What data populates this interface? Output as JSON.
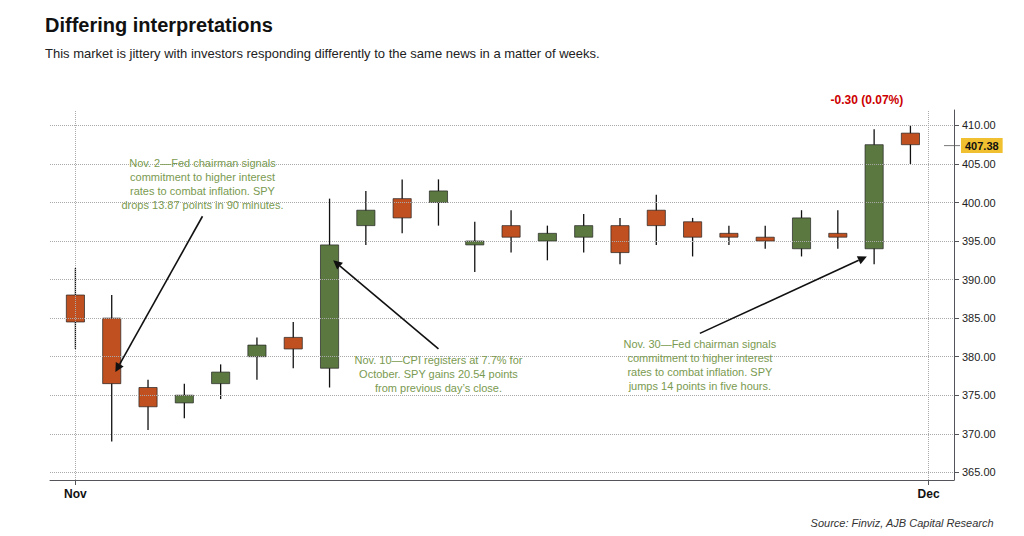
{
  "chart_data": {
    "type": "candlestick",
    "title": "Differing interpretations",
    "subtitle": "This market is jittery with investors responding differently to the same news in a matter of weeks.",
    "source": "Source: Finviz, AJB Capital Research",
    "x": [
      1,
      2,
      3,
      4,
      5,
      6,
      7,
      8,
      9,
      10,
      11,
      12,
      13,
      14,
      15,
      16,
      17,
      18,
      19,
      20,
      21,
      22,
      23,
      24
    ],
    "open": [
      388.0,
      385.0,
      376.0,
      375.0,
      376.5,
      380.0,
      382.5,
      378.5,
      397.0,
      400.5,
      400.0,
      394.5,
      397.0,
      395.0,
      395.5,
      397.0,
      399.0,
      397.5,
      396.0,
      395.5,
      394.0,
      396.0,
      394.0,
      409.0
    ],
    "high": [
      391.5,
      388.0,
      377.0,
      376.5,
      379.0,
      382.5,
      384.5,
      400.5,
      401.5,
      403.0,
      403.0,
      397.5,
      399.0,
      397.0,
      398.5,
      398.0,
      401.0,
      398.0,
      397.0,
      397.0,
      399.0,
      399.0,
      409.5,
      410.0
    ],
    "low": [
      381.0,
      369.0,
      370.5,
      372.0,
      374.5,
      377.0,
      378.5,
      376.0,
      394.5,
      396.0,
      397.0,
      391.0,
      393.5,
      392.5,
      393.5,
      392.0,
      394.5,
      393.0,
      394.5,
      394.0,
      393.0,
      394.0,
      392.0,
      405.0
    ],
    "close": [
      384.5,
      376.5,
      373.5,
      374.0,
      378.0,
      381.5,
      381.0,
      394.5,
      399.0,
      398.0,
      401.5,
      395.0,
      395.5,
      396.0,
      397.0,
      393.5,
      397.0,
      395.5,
      395.5,
      395.0,
      398.0,
      395.5,
      407.5,
      407.5
    ],
    "colors": [
      "#c05020",
      "#c05020",
      "#c05020",
      "#5a7840",
      "#5a7840",
      "#5a7840",
      "#c05020",
      "#5a7840",
      "#5a7840",
      "#c05020",
      "#5a7840",
      "#5a7840",
      "#c05020",
      "#5a7840",
      "#5a7840",
      "#c05020",
      "#c05020",
      "#c05020",
      "#c05020",
      "#c05020",
      "#5a7840",
      "#c05020",
      "#5a7840",
      "#c05020"
    ],
    "xlim": [
      0.3,
      25.2
    ],
    "xticks": [
      {
        "value": 1,
        "label": "Nov"
      },
      {
        "value": 24.5,
        "label": "Dec"
      }
    ],
    "ylim": [
      364,
      412
    ],
    "yticks": [
      {
        "value": 365,
        "label": "365.00"
      },
      {
        "value": 370,
        "label": "370.00"
      },
      {
        "value": 375,
        "label": "375.00"
      },
      {
        "value": 380,
        "label": "380.00"
      },
      {
        "value": 385,
        "label": "385.00"
      },
      {
        "value": 390,
        "label": "390.00"
      },
      {
        "value": 395,
        "label": "395.00"
      },
      {
        "value": 400,
        "label": "400.00"
      },
      {
        "value": 405,
        "label": "405.00"
      },
      {
        "value": 410,
        "label": "410.00"
      }
    ],
    "grid": true,
    "price_label": {
      "value": 407.38,
      "label": "407.38",
      "color": "#f0c030"
    },
    "change_label": {
      "text": "-0.30 (0.07%)",
      "x": 22.8,
      "color": "#cc0000"
    },
    "annotations": [
      {
        "text": "Nov. 2—Fed chairman signals\ncommitment to higher interest\nrates to combat inflation. SPY\ndrops 13.87 points in 90 minutes.",
        "x": 2.1,
        "y": 378.0,
        "text_x": 4.5,
        "text_y": 406.0,
        "color": "#7a9a50"
      },
      {
        "text": "Nov. 10—CPI registers at 7.7% for\nOctober. SPY gains 20.54 points\nfrom previous day’s close.",
        "x": 8.1,
        "y": 392.5,
        "text_x": 11.0,
        "text_y": 380.5,
        "color": "#7a9a50"
      },
      {
        "text": "Nov. 30—Fed chairman signals\ncommitment to higher interest\nrates to combat inflation. SPY\njumps 14 points in five hours.",
        "x": 22.8,
        "y": 393.0,
        "text_x": 18.2,
        "text_y": 382.5,
        "color": "#7a9a50"
      }
    ]
  }
}
